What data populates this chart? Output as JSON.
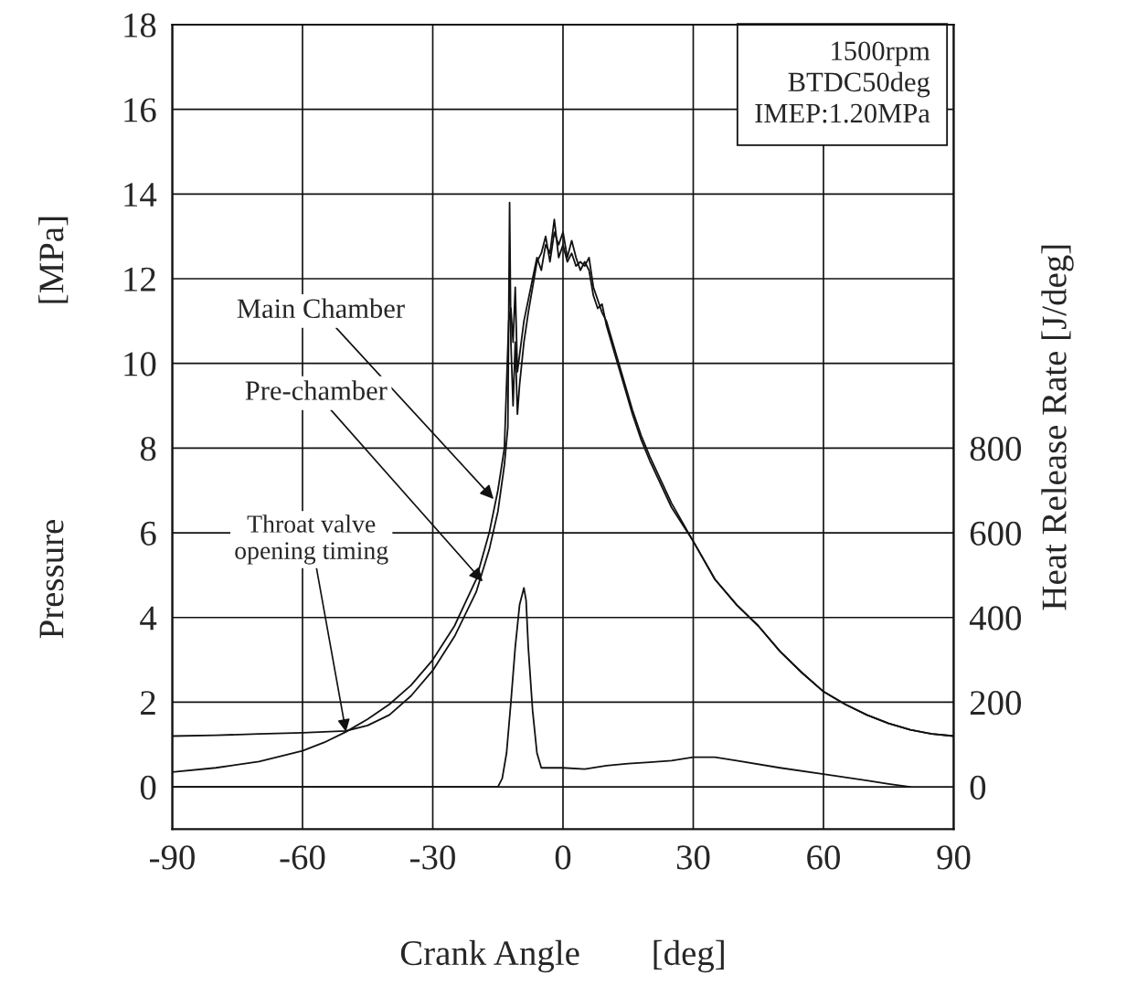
{
  "chart_data": {
    "type": "line",
    "xlabel": "Crank Angle        [deg]",
    "ylabel": "Pressure                        [MPa]",
    "y2label": "Heat Release Rate [J/deg]",
    "xlim": [
      -90,
      90
    ],
    "xticks": [
      -90,
      -60,
      -30,
      0,
      30,
      60,
      90
    ],
    "ylim": [
      -1,
      18
    ],
    "yticks": [
      0,
      2,
      4,
      6,
      8,
      10,
      12,
      14,
      16,
      18
    ],
    "y2lim": [
      -100,
      1800
    ],
    "y2ticks": [
      0,
      200,
      400,
      600,
      800
    ],
    "grid": true,
    "legend": false,
    "line_style": "solid",
    "marker": "none",
    "series": [
      {
        "color": "#111111",
        "x": [
          -90,
          -80,
          -70,
          -60,
          -55,
          -50,
          -45,
          -40,
          -35,
          -30,
          -25,
          -20,
          -17,
          -15,
          -13.5,
          -13,
          -12.5,
          -12,
          -11.5,
          -11,
          -10.5,
          -10,
          -9,
          -8,
          -7,
          -6,
          -5,
          -4,
          -3,
          -2,
          -1,
          0,
          1,
          2,
          3,
          4,
          5,
          6,
          7,
          8,
          9,
          10,
          12,
          14,
          16,
          18,
          20,
          25,
          30,
          35,
          40,
          45,
          50,
          55,
          60,
          65,
          70,
          75,
          80,
          85,
          90
        ],
        "values": [
          0.35,
          0.45,
          0.6,
          0.85,
          1.05,
          1.3,
          1.6,
          1.95,
          2.4,
          3.0,
          3.8,
          4.9,
          6.0,
          7.0,
          8.0,
          9.5,
          11.0,
          11.3,
          10.5,
          11.8,
          9.8,
          10.2,
          11.0,
          11.5,
          12.0,
          12.5,
          12.2,
          12.8,
          12.6,
          13.4,
          12.5,
          12.8,
          12.4,
          12.6,
          12.3,
          12.4,
          12.3,
          12.5,
          11.8,
          11.5,
          11.2,
          11.0,
          10.3,
          9.6,
          8.9,
          8.3,
          7.8,
          6.7,
          5.8,
          4.9,
          4.3,
          3.8,
          3.2,
          2.7,
          2.25,
          1.95,
          1.7,
          1.5,
          1.35,
          1.25,
          1.2
        ]
      },
      {
        "color": "#111111",
        "x": [
          -90,
          -80,
          -70,
          -60,
          -50,
          -45,
          -40,
          -35,
          -30,
          -25,
          -20,
          -17,
          -15,
          -13.5,
          -12.7,
          -12.3,
          -12,
          -11.5,
          -11,
          -10.5,
          -10,
          -9,
          -8,
          -7,
          -6,
          -5,
          -4,
          -3,
          -2,
          -1,
          0,
          1,
          2,
          3,
          4,
          5,
          6,
          7,
          8,
          9,
          10,
          12,
          14,
          16,
          18,
          20,
          25,
          30,
          35,
          40,
          45,
          50,
          55,
          60,
          65,
          70,
          75,
          80,
          85,
          90
        ],
        "values": [
          1.2,
          1.22,
          1.25,
          1.28,
          1.32,
          1.45,
          1.7,
          2.15,
          2.75,
          3.55,
          4.6,
          5.6,
          6.5,
          7.6,
          8.5,
          13.8,
          10.5,
          9.0,
          10.5,
          8.8,
          9.5,
          10.5,
          11.2,
          11.8,
          12.4,
          12.6,
          13.0,
          12.4,
          13.1,
          12.8,
          13.1,
          12.5,
          12.9,
          12.5,
          12.2,
          12.4,
          12.2,
          11.6,
          11.3,
          11.4,
          10.9,
          10.2,
          9.5,
          8.8,
          8.2,
          7.7,
          6.6,
          5.8,
          4.9,
          4.3,
          3.8,
          3.2,
          2.7,
          2.25,
          1.95,
          1.7,
          1.5,
          1.35,
          1.25,
          1.2
        ]
      },
      {
        "color": "#111111",
        "axis": "y2",
        "x": [
          -90,
          -30,
          -15,
          -14,
          -13,
          -12,
          -11,
          -10,
          -9,
          -8.5,
          -8,
          -7,
          -6,
          -5,
          0,
          5,
          10,
          15,
          20,
          25,
          30,
          35,
          40,
          50,
          60,
          70,
          75,
          80
        ],
        "values": [
          0,
          0,
          0,
          20,
          80,
          200,
          330,
          430,
          470,
          440,
          330,
          180,
          80,
          45,
          45,
          42,
          50,
          55,
          58,
          62,
          70,
          70,
          62,
          45,
          30,
          15,
          7,
          0
        ]
      }
    ],
    "annotations": [
      "1500rpm",
      "BTDC50deg",
      "IMEP:1.20MPa",
      {
        "text": "Main Chamber",
        "x": -16,
        "y": 6.8
      },
      {
        "text": "Pre-chamber",
        "x": -18.5,
        "y": 4.85
      },
      {
        "text": "Throat valve\nopening timing",
        "x": -50,
        "y": 1.3
      }
    ]
  }
}
